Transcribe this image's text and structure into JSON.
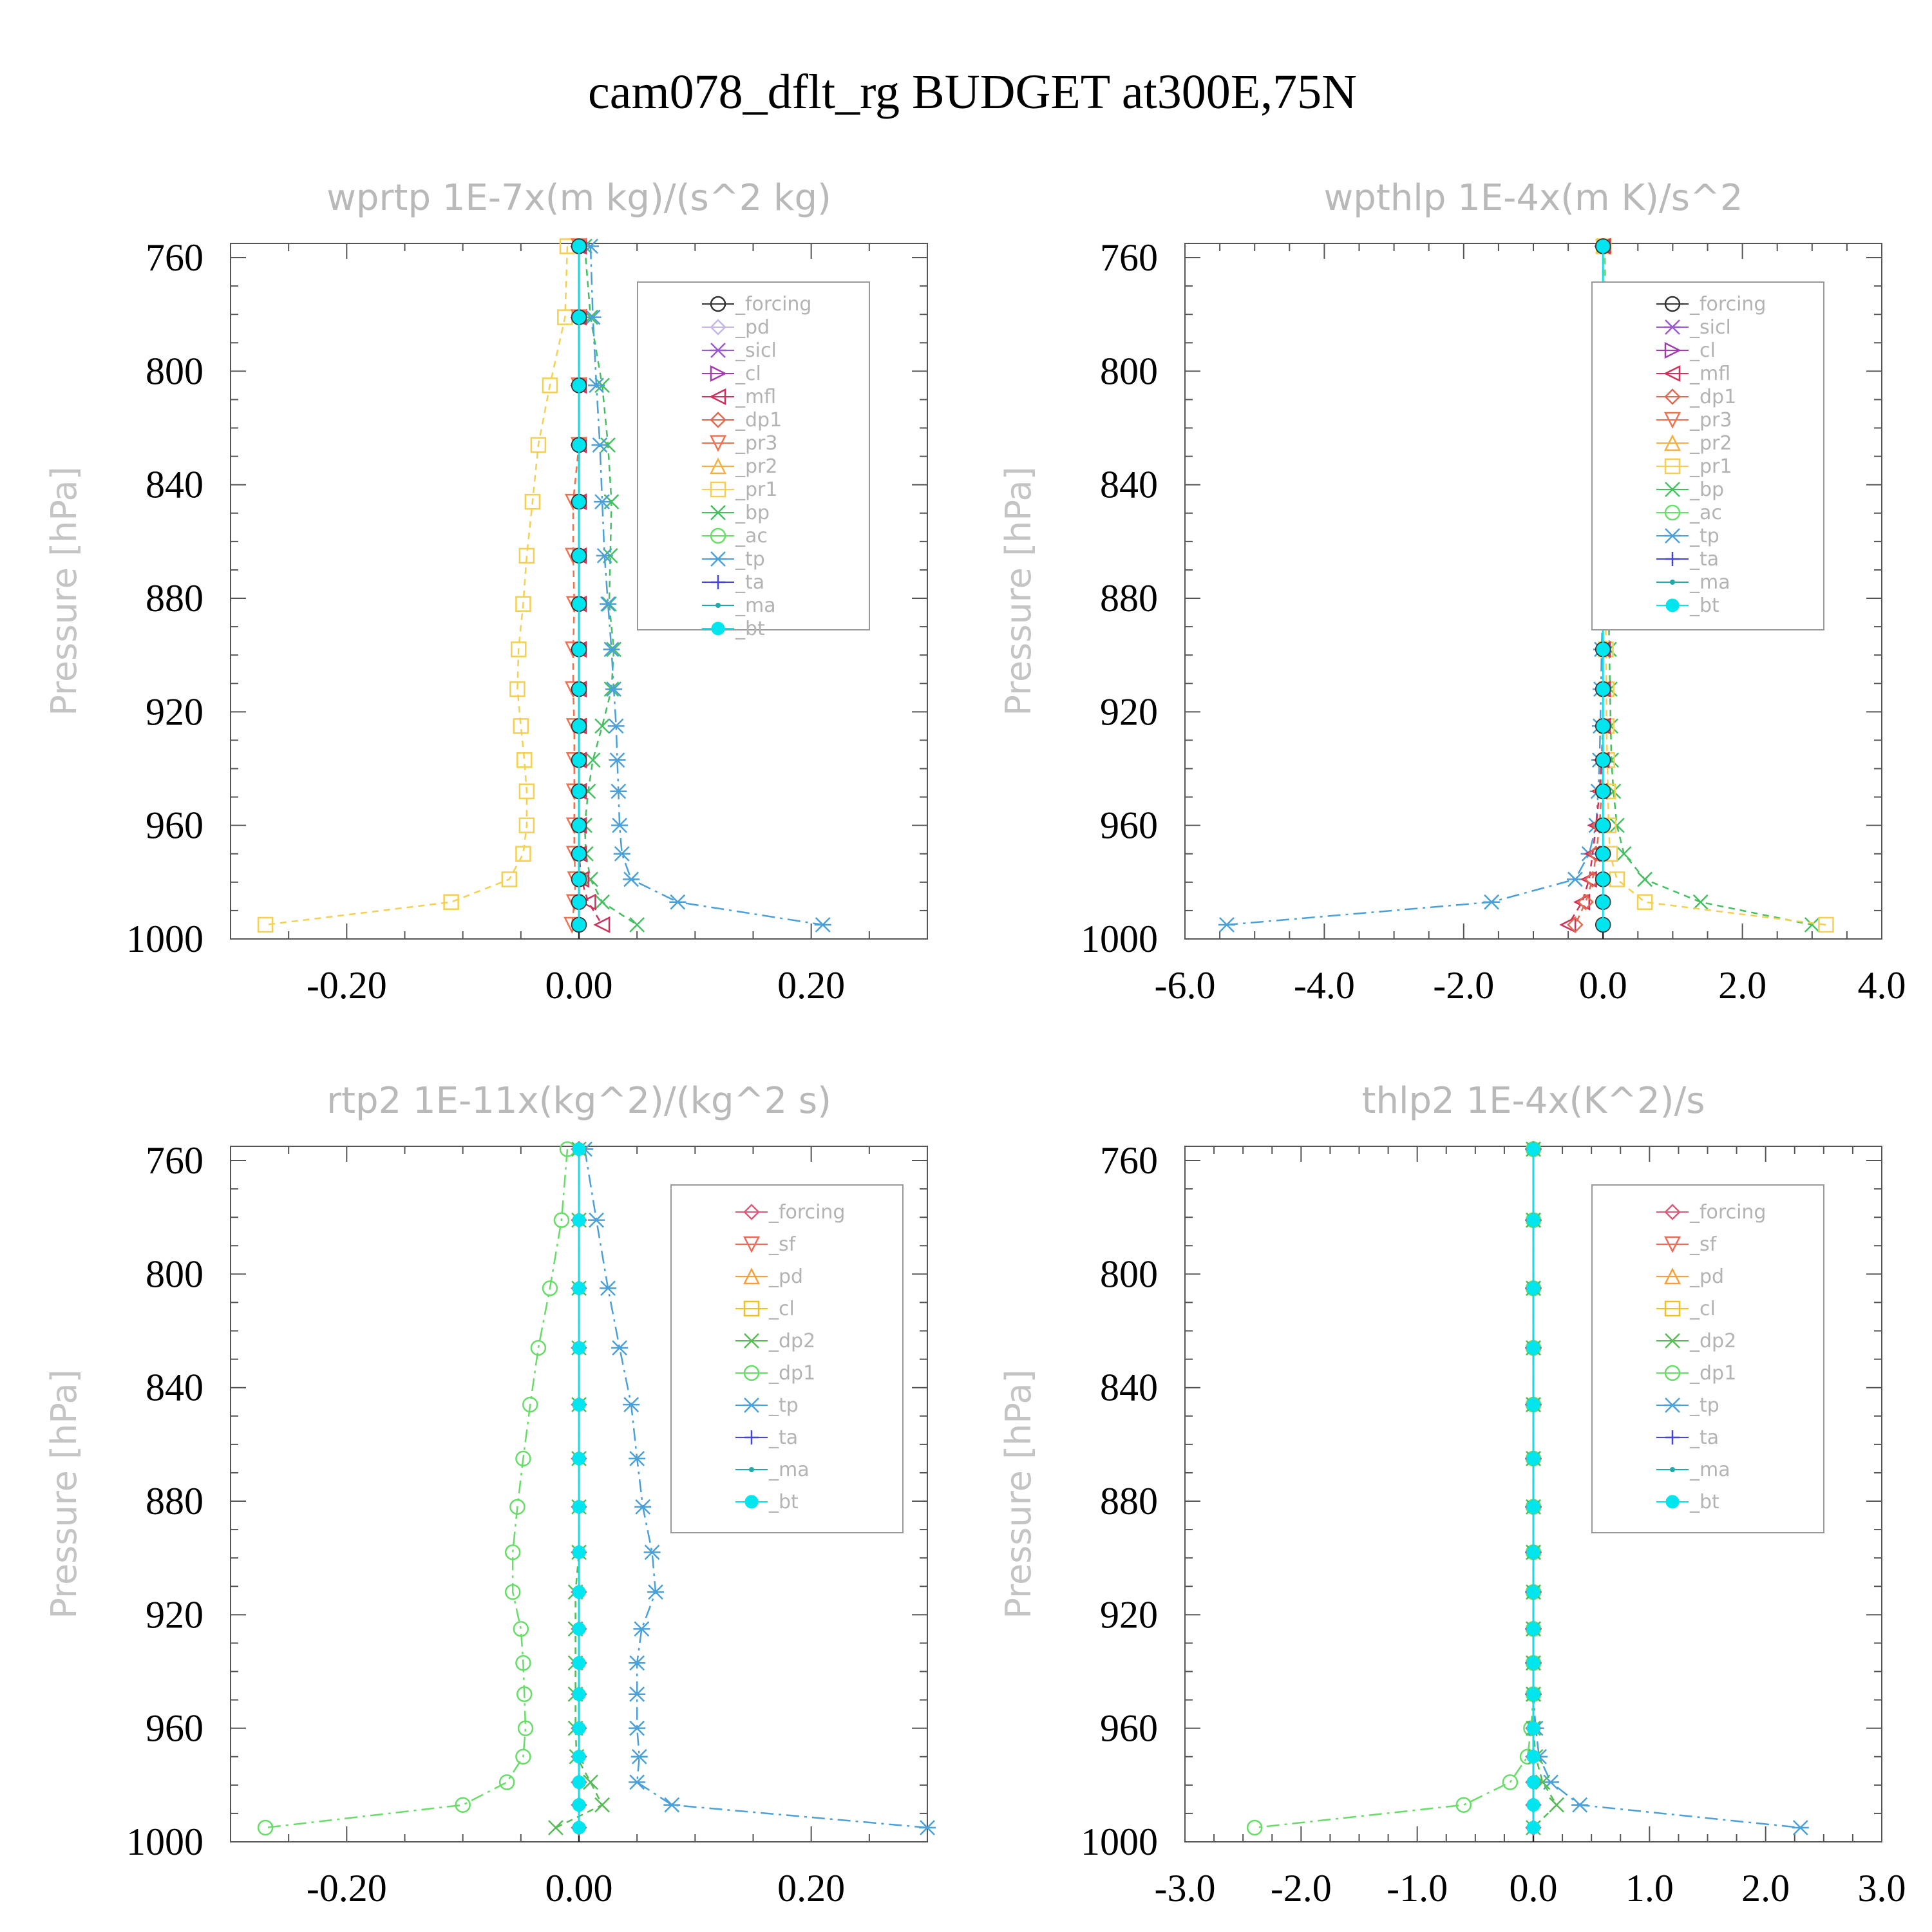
{
  "figure": {
    "title": "cam078_dflt_rg  BUDGET at300E,75N",
    "ylabel": "Pressure [hPa]"
  },
  "colors": {
    "forcing": "#333333",
    "forcing_alt": "#d95b7a",
    "pd": "#c6b8e8",
    "sicl": "#9b59d0",
    "cl": "#a23ab0",
    "cl_alt": "#f0c020",
    "mfl": "#d0305a",
    "dp1": "#e06a50",
    "dp1_alt": "#66dd66",
    "dp2": "#55bb55",
    "sf": "#f06a5a",
    "pd_alt": "#f5a03a",
    "pr3": "#f07050",
    "pr2": "#f5b040",
    "pr1": "#f5d050",
    "bp": "#44c060",
    "ac": "#66e066",
    "tp": "#4aa0d8",
    "ta": "#4444dd",
    "ma": "#22aaaa",
    "bt": "#00e5ee"
  },
  "chart_data": [
    {
      "type": "line",
      "title": "wprtp  1E-7x(m kg)/(s^2 kg)",
      "ylabel": "Pressure [hPa]",
      "ylim": [
        1000,
        755
      ],
      "xlim": [
        -0.3,
        0.3
      ],
      "xticks": [
        -0.2,
        0.0,
        0.2
      ],
      "xticklabels": [
        "-0.20",
        "0.00",
        "0.20"
      ],
      "yticks": [
        760,
        800,
        840,
        880,
        920,
        960,
        1000
      ],
      "y": [
        756,
        781,
        805,
        826,
        846,
        865,
        882,
        898,
        912,
        925,
        937,
        948,
        960,
        970,
        979,
        987,
        995
      ],
      "legend": [
        "_forcing",
        "_pd",
        "_sicl",
        "_cl",
        "_mfl",
        "_dp1",
        "_pr3",
        "_pr2",
        "_pr1",
        "_bp",
        "_ac",
        "_tp",
        "_ta",
        "_ma",
        "_bt"
      ],
      "series": [
        {
          "name": "_pr1",
          "color_key": "pr1",
          "marker": "square",
          "dash": "10,8",
          "values": [
            -0.01,
            -0.012,
            -0.025,
            -0.035,
            -0.04,
            -0.045,
            -0.048,
            -0.052,
            -0.053,
            -0.05,
            -0.047,
            -0.045,
            -0.045,
            -0.048,
            -0.06,
            -0.11,
            -0.27
          ]
        },
        {
          "name": "_bp",
          "color_key": "bp",
          "marker": "x",
          "dash": "10,8",
          "values": [
            0.005,
            0.01,
            0.02,
            0.025,
            0.028,
            0.027,
            0.026,
            0.03,
            0.028,
            0.02,
            0.012,
            0.008,
            0.005,
            0.006,
            0.01,
            0.02,
            0.05
          ]
        },
        {
          "name": "_tp",
          "color_key": "tp",
          "marker": "star",
          "dash": "20,8,4,8",
          "values": [
            0.01,
            0.012,
            0.015,
            0.018,
            0.02,
            0.022,
            0.025,
            0.028,
            0.03,
            0.032,
            0.033,
            0.034,
            0.035,
            0.037,
            0.045,
            0.085,
            0.21
          ]
        },
        {
          "name": "_mfl",
          "color_key": "mfl",
          "marker": "tri-left",
          "dash": "10,8",
          "values": [
            0.0,
            0.0,
            0.0,
            0.0,
            0.0,
            0.0,
            0.0,
            0.0,
            0.0,
            0.0,
            0.0,
            0.0,
            0.0,
            0.0,
            0.002,
            0.008,
            0.02
          ]
        },
        {
          "name": "_pr3",
          "color_key": "pr3",
          "marker": "tri-down",
          "dash": "10,8",
          "values": [
            0.0,
            0.0,
            0.0,
            0.0,
            -0.005,
            -0.005,
            -0.004,
            -0.005,
            -0.005,
            -0.004,
            -0.004,
            -0.004,
            -0.004,
            -0.004,
            -0.003,
            -0.004,
            -0.006
          ]
        },
        {
          "name": "_forcing",
          "color_key": "forcing",
          "marker": "circle",
          "dash": "none",
          "values": [
            0,
            0,
            0,
            0,
            0,
            0,
            0,
            0,
            0,
            0,
            0,
            0,
            0,
            0,
            0,
            0,
            0
          ]
        },
        {
          "name": "_bt",
          "color_key": "bt",
          "marker": "dot",
          "dash": "none",
          "values": [
            0,
            0,
            0,
            0,
            0,
            0,
            0,
            0,
            0,
            0,
            0,
            0,
            0,
            0,
            0,
            0,
            0
          ]
        }
      ]
    },
    {
      "type": "line",
      "title": "wpthlp  1E-4x(m K)/s^2",
      "ylabel": "Pressure [hPa]",
      "ylim": [
        1000,
        755
      ],
      "xlim": [
        -6.0,
        4.0
      ],
      "xticks": [
        -6.0,
        -4.0,
        -2.0,
        0.0,
        2.0,
        4.0
      ],
      "xticklabels": [
        "-6.0",
        "-4.0",
        "-2.0",
        "0.0",
        "2.0",
        "4.0"
      ],
      "yticks": [
        760,
        800,
        840,
        880,
        920,
        960,
        1000
      ],
      "y": [
        756,
        781,
        805,
        826,
        846,
        865,
        882,
        898,
        912,
        925,
        937,
        948,
        960,
        970,
        979,
        987,
        995
      ],
      "legend": [
        "_forcing",
        "_sicl",
        "_cl",
        "_mfl",
        "_dp1",
        "_pr3",
        "_pr2",
        "_pr1",
        "_bp",
        "_ac",
        "_tp",
        "_ta",
        "_ma",
        "_bt"
      ],
      "series": [
        {
          "name": "_tp",
          "color_key": "tp",
          "marker": "star",
          "dash": "20,8,4,8",
          "values": [
            0.0,
            0.0,
            0.0,
            0.0,
            0.0,
            0.0,
            0.0,
            -0.02,
            -0.03,
            -0.04,
            -0.05,
            -0.07,
            -0.1,
            -0.2,
            -0.4,
            -1.6,
            -5.4
          ]
        },
        {
          "name": "_bp",
          "color_key": "bp",
          "marker": "x",
          "dash": "10,8",
          "values": [
            0.02,
            0.03,
            0.04,
            0.05,
            0.06,
            0.07,
            0.08,
            0.09,
            0.1,
            0.11,
            0.12,
            0.15,
            0.2,
            0.3,
            0.6,
            1.4,
            3.0
          ]
        },
        {
          "name": "_pr1",
          "color_key": "pr1",
          "marker": "square",
          "dash": "10,8",
          "values": [
            0.01,
            0.01,
            0.02,
            0.02,
            0.03,
            0.03,
            0.04,
            0.04,
            0.05,
            0.05,
            0.06,
            0.07,
            0.08,
            0.1,
            0.2,
            0.6,
            3.2
          ]
        },
        {
          "name": "_mfl",
          "color_key": "mfl",
          "marker": "tri-left",
          "dash": "10,8",
          "values": [
            0.0,
            0.0,
            0.0,
            0.0,
            0.0,
            0.0,
            0.0,
            0.0,
            0.0,
            0.0,
            -0.02,
            -0.05,
            -0.1,
            -0.15,
            -0.2,
            -0.3,
            -0.5
          ]
        },
        {
          "name": "_dp1",
          "color_key": "dp1",
          "marker": "diamond",
          "dash": "10,8",
          "values": [
            0.0,
            0.0,
            0.0,
            0.0,
            0.0,
            0.0,
            0.0,
            0.0,
            0.0,
            0.0,
            0.0,
            -0.02,
            -0.05,
            -0.1,
            -0.15,
            -0.25,
            -0.4
          ]
        },
        {
          "name": "_forcing",
          "color_key": "forcing",
          "marker": "circle",
          "dash": "none",
          "values": [
            0,
            0,
            0,
            0,
            0,
            0,
            0,
            0,
            0,
            0,
            0,
            0,
            0,
            0,
            0,
            0,
            0
          ]
        },
        {
          "name": "_bt",
          "color_key": "bt",
          "marker": "dot",
          "dash": "none",
          "values": [
            0,
            0,
            0,
            0,
            0,
            0,
            0,
            0,
            0,
            0,
            0,
            0,
            0,
            0,
            0,
            0,
            0
          ]
        }
      ]
    },
    {
      "type": "line",
      "title": "rtp2  1E-11x(kg^2)/(kg^2 s)",
      "ylabel": "Pressure [hPa]",
      "ylim": [
        1000,
        755
      ],
      "xlim": [
        -0.3,
        0.3
      ],
      "xticks": [
        -0.2,
        0.0,
        0.2
      ],
      "xticklabels": [
        "-0.20",
        "0.00",
        "0.20"
      ],
      "yticks": [
        760,
        800,
        840,
        880,
        920,
        960,
        1000
      ],
      "y": [
        756,
        781,
        805,
        826,
        846,
        865,
        882,
        898,
        912,
        925,
        937,
        948,
        960,
        970,
        979,
        987,
        995
      ],
      "legend": [
        "_forcing",
        "_sf",
        "_pd",
        "_cl",
        "_dp2",
        "_dp1",
        "_tp",
        "_ta",
        "_ma",
        "_bt"
      ],
      "series": [
        {
          "name": "_dp1",
          "color_key": "dp1_alt",
          "marker": "circle",
          "dash": "20,8,4,8",
          "values": [
            -0.01,
            -0.015,
            -0.025,
            -0.035,
            -0.042,
            -0.048,
            -0.053,
            -0.057,
            -0.057,
            -0.05,
            -0.048,
            -0.047,
            -0.046,
            -0.048,
            -0.062,
            -0.1,
            -0.27
          ]
        },
        {
          "name": "_tp",
          "color_key": "tp",
          "marker": "star",
          "dash": "20,8,4,8",
          "values": [
            0.005,
            0.015,
            0.025,
            0.035,
            0.045,
            0.05,
            0.055,
            0.063,
            0.066,
            0.054,
            0.05,
            0.05,
            0.05,
            0.052,
            0.05,
            0.08,
            0.3
          ]
        },
        {
          "name": "_dp2",
          "color_key": "dp2",
          "marker": "x",
          "dash": "10,8",
          "values": [
            0.0,
            0.0,
            0.0,
            0.0,
            0.0,
            0.0,
            0.0,
            0.0,
            -0.003,
            -0.003,
            -0.003,
            -0.003,
            -0.003,
            -0.002,
            0.01,
            0.02,
            -0.02
          ]
        },
        {
          "name": "_forcing",
          "color_key": "forcing_alt",
          "marker": "diamond",
          "dash": "none",
          "values": [
            0,
            0,
            0,
            0,
            0,
            0,
            0,
            0,
            0,
            0,
            0,
            0,
            0,
            0,
            0,
            0,
            0
          ]
        },
        {
          "name": "_bt",
          "color_key": "bt",
          "marker": "dot",
          "dash": "none",
          "values": [
            0,
            0,
            0,
            0,
            0,
            0,
            0,
            0,
            0,
            0,
            0,
            0,
            0,
            0,
            0,
            0,
            0
          ]
        }
      ]
    },
    {
      "type": "line",
      "title": "thlp2  1E-4x(K^2)/s",
      "ylabel": "Pressure [hPa]",
      "ylim": [
        1000,
        755
      ],
      "xlim": [
        -3.0,
        3.0
      ],
      "xticks": [
        -3.0,
        -2.0,
        -1.0,
        0.0,
        1.0,
        2.0,
        3.0
      ],
      "xticklabels": [
        "-3.0",
        "-2.0",
        "-1.0",
        "0.0",
        "1.0",
        "2.0",
        "3.0"
      ],
      "yticks": [
        760,
        800,
        840,
        880,
        920,
        960,
        1000
      ],
      "y": [
        756,
        781,
        805,
        826,
        846,
        865,
        882,
        898,
        912,
        925,
        937,
        948,
        960,
        970,
        979,
        987,
        995
      ],
      "legend": [
        "_forcing",
        "_sf",
        "_pd",
        "_cl",
        "_dp2",
        "_dp1",
        "_tp",
        "_ta",
        "_ma",
        "_bt"
      ],
      "series": [
        {
          "name": "_dp1",
          "color_key": "dp1_alt",
          "marker": "circle",
          "dash": "20,8,4,8",
          "values": [
            0.0,
            0.0,
            0.0,
            0.0,
            0.0,
            0.0,
            0.0,
            0.0,
            0.0,
            0.0,
            0.0,
            0.0,
            -0.02,
            -0.05,
            -0.2,
            -0.6,
            -2.4
          ]
        },
        {
          "name": "_tp",
          "color_key": "tp",
          "marker": "star",
          "dash": "20,8,4,8",
          "values": [
            0.0,
            0.0,
            0.0,
            0.0,
            0.0,
            0.0,
            0.0,
            0.0,
            0.0,
            0.0,
            0.0,
            0.0,
            0.02,
            0.05,
            0.15,
            0.4,
            2.3
          ]
        },
        {
          "name": "_dp2",
          "color_key": "dp2",
          "marker": "x",
          "dash": "10,8",
          "values": [
            0.0,
            0.0,
            0.0,
            0.0,
            0.0,
            0.0,
            0.0,
            0.0,
            0.0,
            0.0,
            0.0,
            0.0,
            0.0,
            0.02,
            0.08,
            0.2,
            0.0
          ]
        },
        {
          "name": "_forcing",
          "color_key": "forcing_alt",
          "marker": "diamond",
          "dash": "none",
          "values": [
            0,
            0,
            0,
            0,
            0,
            0,
            0,
            0,
            0,
            0,
            0,
            0,
            0,
            0,
            0,
            0,
            0
          ]
        },
        {
          "name": "_bt",
          "color_key": "bt",
          "marker": "dot",
          "dash": "none",
          "values": [
            0,
            0,
            0,
            0,
            0,
            0,
            0,
            0,
            0,
            0,
            0,
            0,
            0,
            0,
            0,
            0,
            0
          ]
        }
      ]
    }
  ]
}
